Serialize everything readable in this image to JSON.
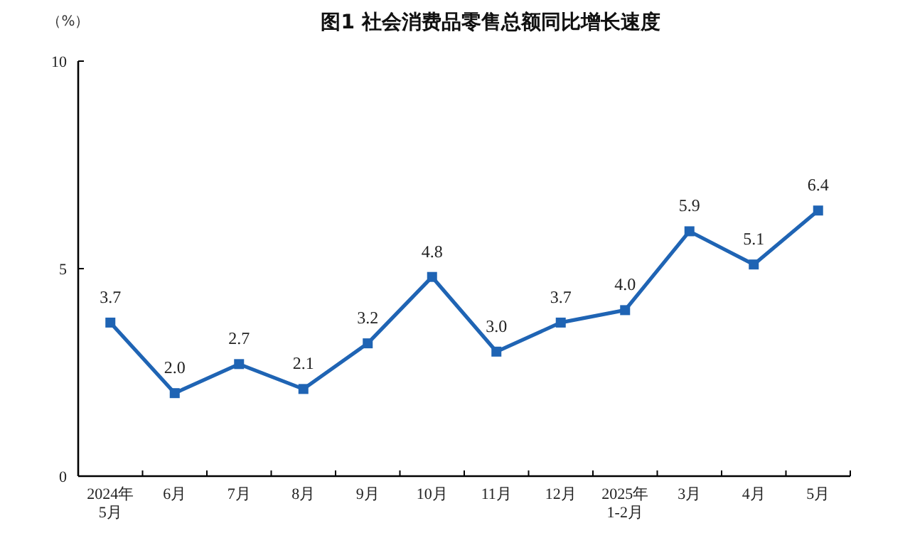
{
  "chart_data": {
    "type": "line",
    "title": "图1  社会消费品零售总额同比增长速度",
    "ylabel": "（%）",
    "categories": [
      "2024年\n5月",
      "6月",
      "7月",
      "8月",
      "9月",
      "10月",
      "11月",
      "12月",
      "2025年\n1-2月",
      "3月",
      "4月",
      "5月"
    ],
    "series": [
      {
        "color": "#1f64b4",
        "values": [
          3.7,
          2.0,
          2.7,
          2.1,
          3.2,
          4.8,
          3.0,
          3.7,
          4.0,
          5.9,
          5.1,
          6.4
        ],
        "value_labels": [
          "3.7",
          "2.0",
          "2.7",
          "2.1",
          "3.2",
          "4.8",
          "3.0",
          "3.7",
          "4.0",
          "5.9",
          "5.1",
          "6.4"
        ]
      }
    ],
    "ylim": [
      0,
      10
    ],
    "yticks": [
      0,
      5,
      10
    ],
    "marker": "square",
    "grid": false
  }
}
